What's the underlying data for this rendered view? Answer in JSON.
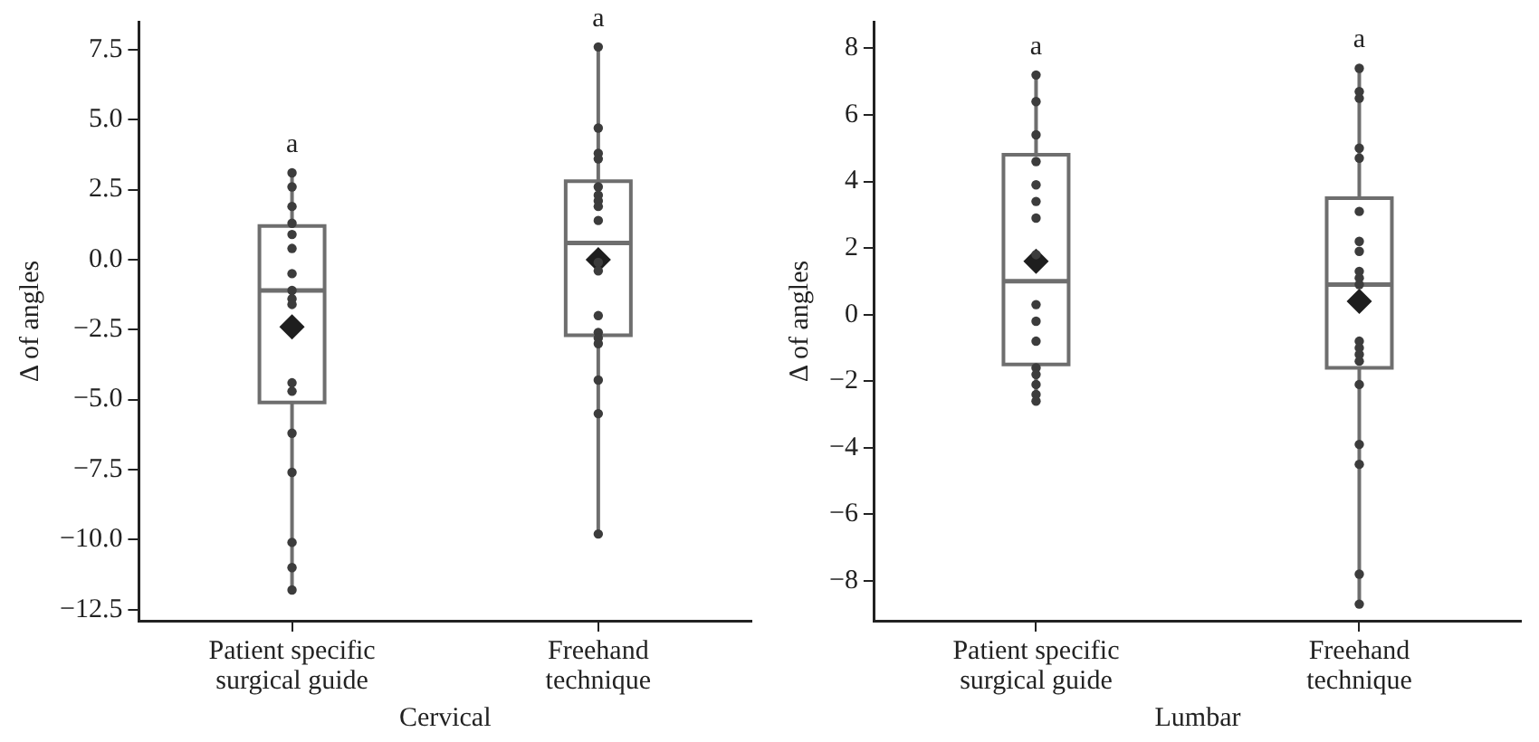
{
  "chart_data": [
    {
      "type": "box",
      "xlabel": "Cervical",
      "ylabel": "Δ of angles",
      "categories": [
        "Patient specific\nsurgical guide",
        "Freehand\ntechnique"
      ],
      "ylim": [
        -12.9,
        8.5
      ],
      "yticks": [
        {
          "value": -12.5,
          "label": "−12.5"
        },
        {
          "value": -10,
          "label": "−10.0"
        },
        {
          "value": -7.5,
          "label": "−7.5"
        },
        {
          "value": -5,
          "label": "−5.0"
        },
        {
          "value": -2.5,
          "label": "−2.5"
        },
        {
          "value": 0,
          "label": "0.0"
        },
        {
          "value": 2.5,
          "label": "2.5"
        },
        {
          "value": 5,
          "label": "5.0"
        },
        {
          "value": 7.5,
          "label": "7.5"
        }
      ],
      "series": [
        {
          "type": "box",
          "color": "#6e6e6e",
          "boxes": [
            {
              "low": -11.8,
              "q1": -5.1,
              "median": -1.1,
              "q3": 1.2,
              "high": 3.1,
              "mean": -2.4
            },
            {
              "low": -9.9,
              "q1": -2.7,
              "median": 0.6,
              "q3": 2.8,
              "high": 7.6,
              "mean": 0.0
            }
          ]
        },
        {
          "type": "scatter",
          "color": "#3c3c3c",
          "x": [
            "Patient specific\nsurgical guide",
            "Patient specific\nsurgical guide",
            "Patient specific\nsurgical guide",
            "Patient specific\nsurgical guide",
            "Patient specific\nsurgical guide",
            "Patient specific\nsurgical guide",
            "Patient specific\nsurgical guide",
            "Patient specific\nsurgical guide",
            "Patient specific\nsurgical guide",
            "Patient specific\nsurgical guide",
            "Patient specific\nsurgical guide",
            "Patient specific\nsurgical guide",
            "Patient specific\nsurgical guide",
            "Patient specific\nsurgical guide",
            "Patient specific\nsurgical guide",
            "Patient specific\nsurgical guide",
            "Patient specific\nsurgical guide",
            "Freehand\ntechnique",
            "Freehand\ntechnique",
            "Freehand\ntechnique",
            "Freehand\ntechnique",
            "Freehand\ntechnique",
            "Freehand\ntechnique",
            "Freehand\ntechnique",
            "Freehand\ntechnique",
            "Freehand\ntechnique",
            "Freehand\ntechnique",
            "Freehand\ntechnique",
            "Freehand\ntechnique",
            "Freehand\ntechnique",
            "Freehand\ntechnique",
            "Freehand\ntechnique",
            "Freehand\ntechnique",
            "Freehand\ntechnique",
            "Freehand\ntechnique"
          ],
          "values": [
            3.1,
            2.6,
            1.9,
            1.3,
            0.9,
            0.4,
            -0.5,
            -1.1,
            -1.4,
            -1.6,
            -4.4,
            -4.7,
            -6.2,
            -7.6,
            -10.1,
            -11.0,
            -11.8,
            7.6,
            4.7,
            3.8,
            3.6,
            2.6,
            2.3,
            2.1,
            1.9,
            1.4,
            -0.1,
            -0.4,
            -2.0,
            -2.6,
            -2.8,
            -3.0,
            -4.3,
            -5.5,
            -9.8
          ]
        }
      ],
      "marker": "circle",
      "annotations": [
        "a",
        "a"
      ]
    },
    {
      "type": "box",
      "xlabel": "Lumbar",
      "ylabel": "Δ of angles",
      "categories": [
        "Patient specific\nsurgical guide",
        "Freehand\ntechnique"
      ],
      "ylim": [
        -9.2,
        8.8
      ],
      "yticks": [
        {
          "value": -8,
          "label": "−8"
        },
        {
          "value": -6,
          "label": "−6"
        },
        {
          "value": -4,
          "label": "−4"
        },
        {
          "value": -2,
          "label": "−2"
        },
        0,
        2,
        4,
        6,
        8
      ],
      "series": [
        {
          "type": "box",
          "color": "#6e6e6e",
          "boxes": [
            {
              "low": -2.6,
              "q1": -1.5,
              "median": 1.0,
              "q3": 4.8,
              "high": 7.2,
              "mean": 1.6
            },
            {
              "low": -8.7,
              "q1": -1.6,
              "median": 0.9,
              "q3": 3.5,
              "high": 7.4,
              "mean": 0.4
            }
          ]
        },
        {
          "type": "scatter",
          "color": "#3c3c3c",
          "x": [
            "Patient specific\nsurgical guide",
            "Patient specific\nsurgical guide",
            "Patient specific\nsurgical guide",
            "Patient specific\nsurgical guide",
            "Patient specific\nsurgical guide",
            "Patient specific\nsurgical guide",
            "Patient specific\nsurgical guide",
            "Patient specific\nsurgical guide",
            "Patient specific\nsurgical guide",
            "Patient specific\nsurgical guide",
            "Patient specific\nsurgical guide",
            "Patient specific\nsurgical guide",
            "Patient specific\nsurgical guide",
            "Patient specific\nsurgical guide",
            "Patient specific\nsurgical guide",
            "Patient specific\nsurgical guide",
            "Freehand\ntechnique",
            "Freehand\ntechnique",
            "Freehand\ntechnique",
            "Freehand\ntechnique",
            "Freehand\ntechnique",
            "Freehand\ntechnique",
            "Freehand\ntechnique",
            "Freehand\ntechnique",
            "Freehand\ntechnique",
            "Freehand\ntechnique",
            "Freehand\ntechnique",
            "Freehand\ntechnique",
            "Freehand\ntechnique",
            "Freehand\ntechnique",
            "Freehand\ntechnique",
            "Freehand\ntechnique",
            "Freehand\ntechnique",
            "Freehand\ntechnique",
            "Freehand\ntechnique",
            "Freehand\ntechnique"
          ],
          "values": [
            7.2,
            6.4,
            5.4,
            4.6,
            3.9,
            3.4,
            2.9,
            1.8,
            0.3,
            -0.2,
            -0.8,
            -1.6,
            -1.8,
            -2.1,
            -2.4,
            -2.6,
            7.4,
            6.7,
            6.5,
            5.0,
            4.7,
            3.1,
            2.2,
            1.9,
            1.3,
            1.1,
            0.9,
            -0.8,
            -1.0,
            -1.2,
            -1.4,
            -2.1,
            -3.9,
            -4.5,
            -7.8,
            -8.7
          ]
        }
      ],
      "marker": "circle",
      "annotations": [
        "a",
        "a"
      ]
    }
  ]
}
